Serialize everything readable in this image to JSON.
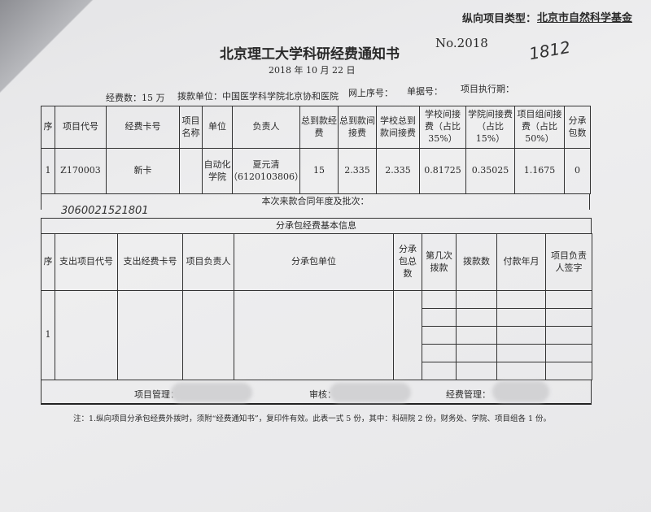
{
  "project_type_label": "纵向项目类型：",
  "project_type_value": "北京市自然科学基金",
  "title": "北京理工大学科研经费通知书",
  "number_label": "No.2018",
  "number_handwritten": "1812",
  "date": "2018 年 10 月 22 日",
  "info": {
    "funds": "经费数：15 万",
    "payer": "拨款单位：中国医学科学院北京协和医院",
    "online_seq": "网上序号：",
    "receipt_no": "单据号：",
    "period": "项目执行期："
  },
  "main_table": {
    "headers": [
      "序",
      "项目代号",
      "经费卡号",
      "项目名称",
      "单位",
      "负责人",
      "总到款经费",
      "总到款间接费",
      "学校总到款间接费",
      "学校间接费（占比 35%）",
      "学院间接费（占比 15%）",
      "项目组间接费（占比 50%）",
      "分承包数"
    ],
    "row": [
      "1",
      "Z170003",
      "新卡",
      "",
      "自动化学院",
      "夏元清（6120103806）",
      "15",
      "2.335",
      "2.335",
      "0.81725",
      "0.35025",
      "1.1675",
      "0"
    ]
  },
  "contract_label": "本次来款合同年度及批次：",
  "contract_handwritten": "3060021521801",
  "sub_title": "分承包经费基本信息",
  "sub_table": {
    "headers": [
      "序",
      "支出项目代号",
      "支出经费卡号",
      "项目负责人",
      "分承包单位",
      "分承包总数",
      "第几次拨款",
      "拨款数",
      "付款年月",
      "项目负责人签字"
    ],
    "row_index": "1"
  },
  "footer": {
    "manager": "项目管理：",
    "audit": "审核：",
    "finance": "经费管理："
  },
  "note": "注：1.纵向项目分承包经费外拨时，须附“经费通知书”，复印件有效。此表一式 5 份，其中：科研院 2 份，财务处、学院、项目组各 1 份。"
}
